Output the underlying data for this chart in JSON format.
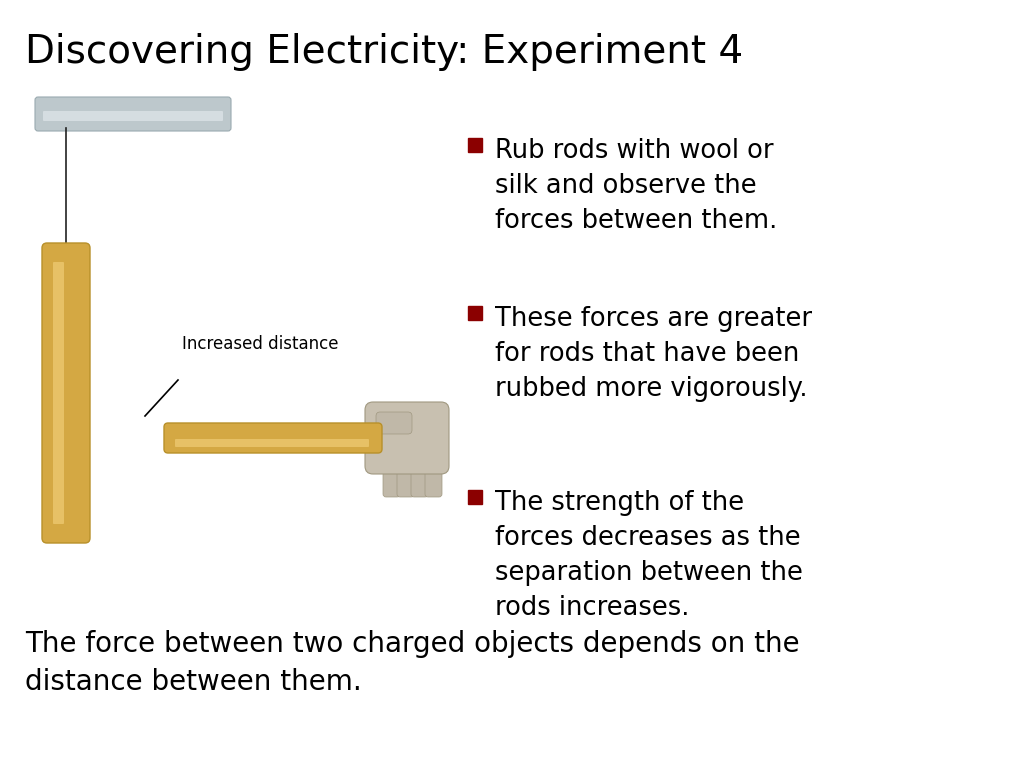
{
  "title": "Discovering Electricity: Experiment 4",
  "title_fontsize": 28,
  "title_color": "#000000",
  "bullet_color": "#8B0000",
  "bullet_text_color": "#000000",
  "bullet_fontsize": 18.5,
  "bullets": [
    "Rub rods with wool or\nsilk and observe the\nforces between them.",
    "These forces are greater\nfor rods that have been\nrubbed more vigorously.",
    "The strength of the\nforces decreases as the\nseparation between the\nrods increases."
  ],
  "footer": "The force between two charged objects depends on the\ndistance between them.",
  "footer_fontsize": 20,
  "footer_color": "#000000",
  "label_text": "Increased distance",
  "label_fontsize": 12,
  "rod_color": "#D4A843",
  "rod_color_dark": "#B8902A",
  "rod_color_light": "#ECC870",
  "support_color": "#BDC8CC",
  "support_color_dark": "#9AAAB0",
  "support_highlight": "#D8E0E4",
  "background_color": "#FFFFFF",
  "hand_palm_color": "#C8C0B0",
  "hand_finger_color": "#C0B8A8",
  "hand_edge_color": "#A09880"
}
